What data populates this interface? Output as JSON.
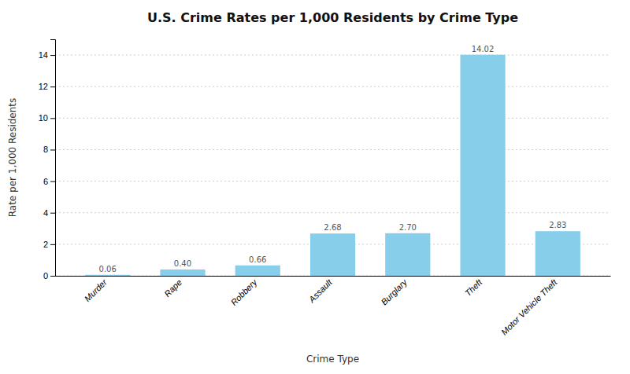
{
  "chart_data": {
    "type": "bar",
    "title": "U.S. Crime Rates per 1,000 Residents by Crime Type",
    "xlabel": "Crime Type",
    "ylabel": "Rate per 1,000 Residents",
    "categories": [
      "Murder",
      "Rape",
      "Robbery",
      "Assault",
      "Burglary",
      "Theft",
      "Motor Vehicle Theft"
    ],
    "values": [
      0.06,
      0.4,
      0.66,
      2.68,
      2.7,
      14.02,
      2.83
    ],
    "value_labels": [
      "0.06",
      "0.40",
      "0.66",
      "2.68",
      "2.70",
      "14.02",
      "2.83"
    ],
    "data_labels": true,
    "color": "#87CEEB",
    "ylim": [
      0,
      15
    ],
    "yticks": [
      0,
      2,
      4,
      6,
      8,
      10,
      12,
      14
    ],
    "grid": true
  }
}
